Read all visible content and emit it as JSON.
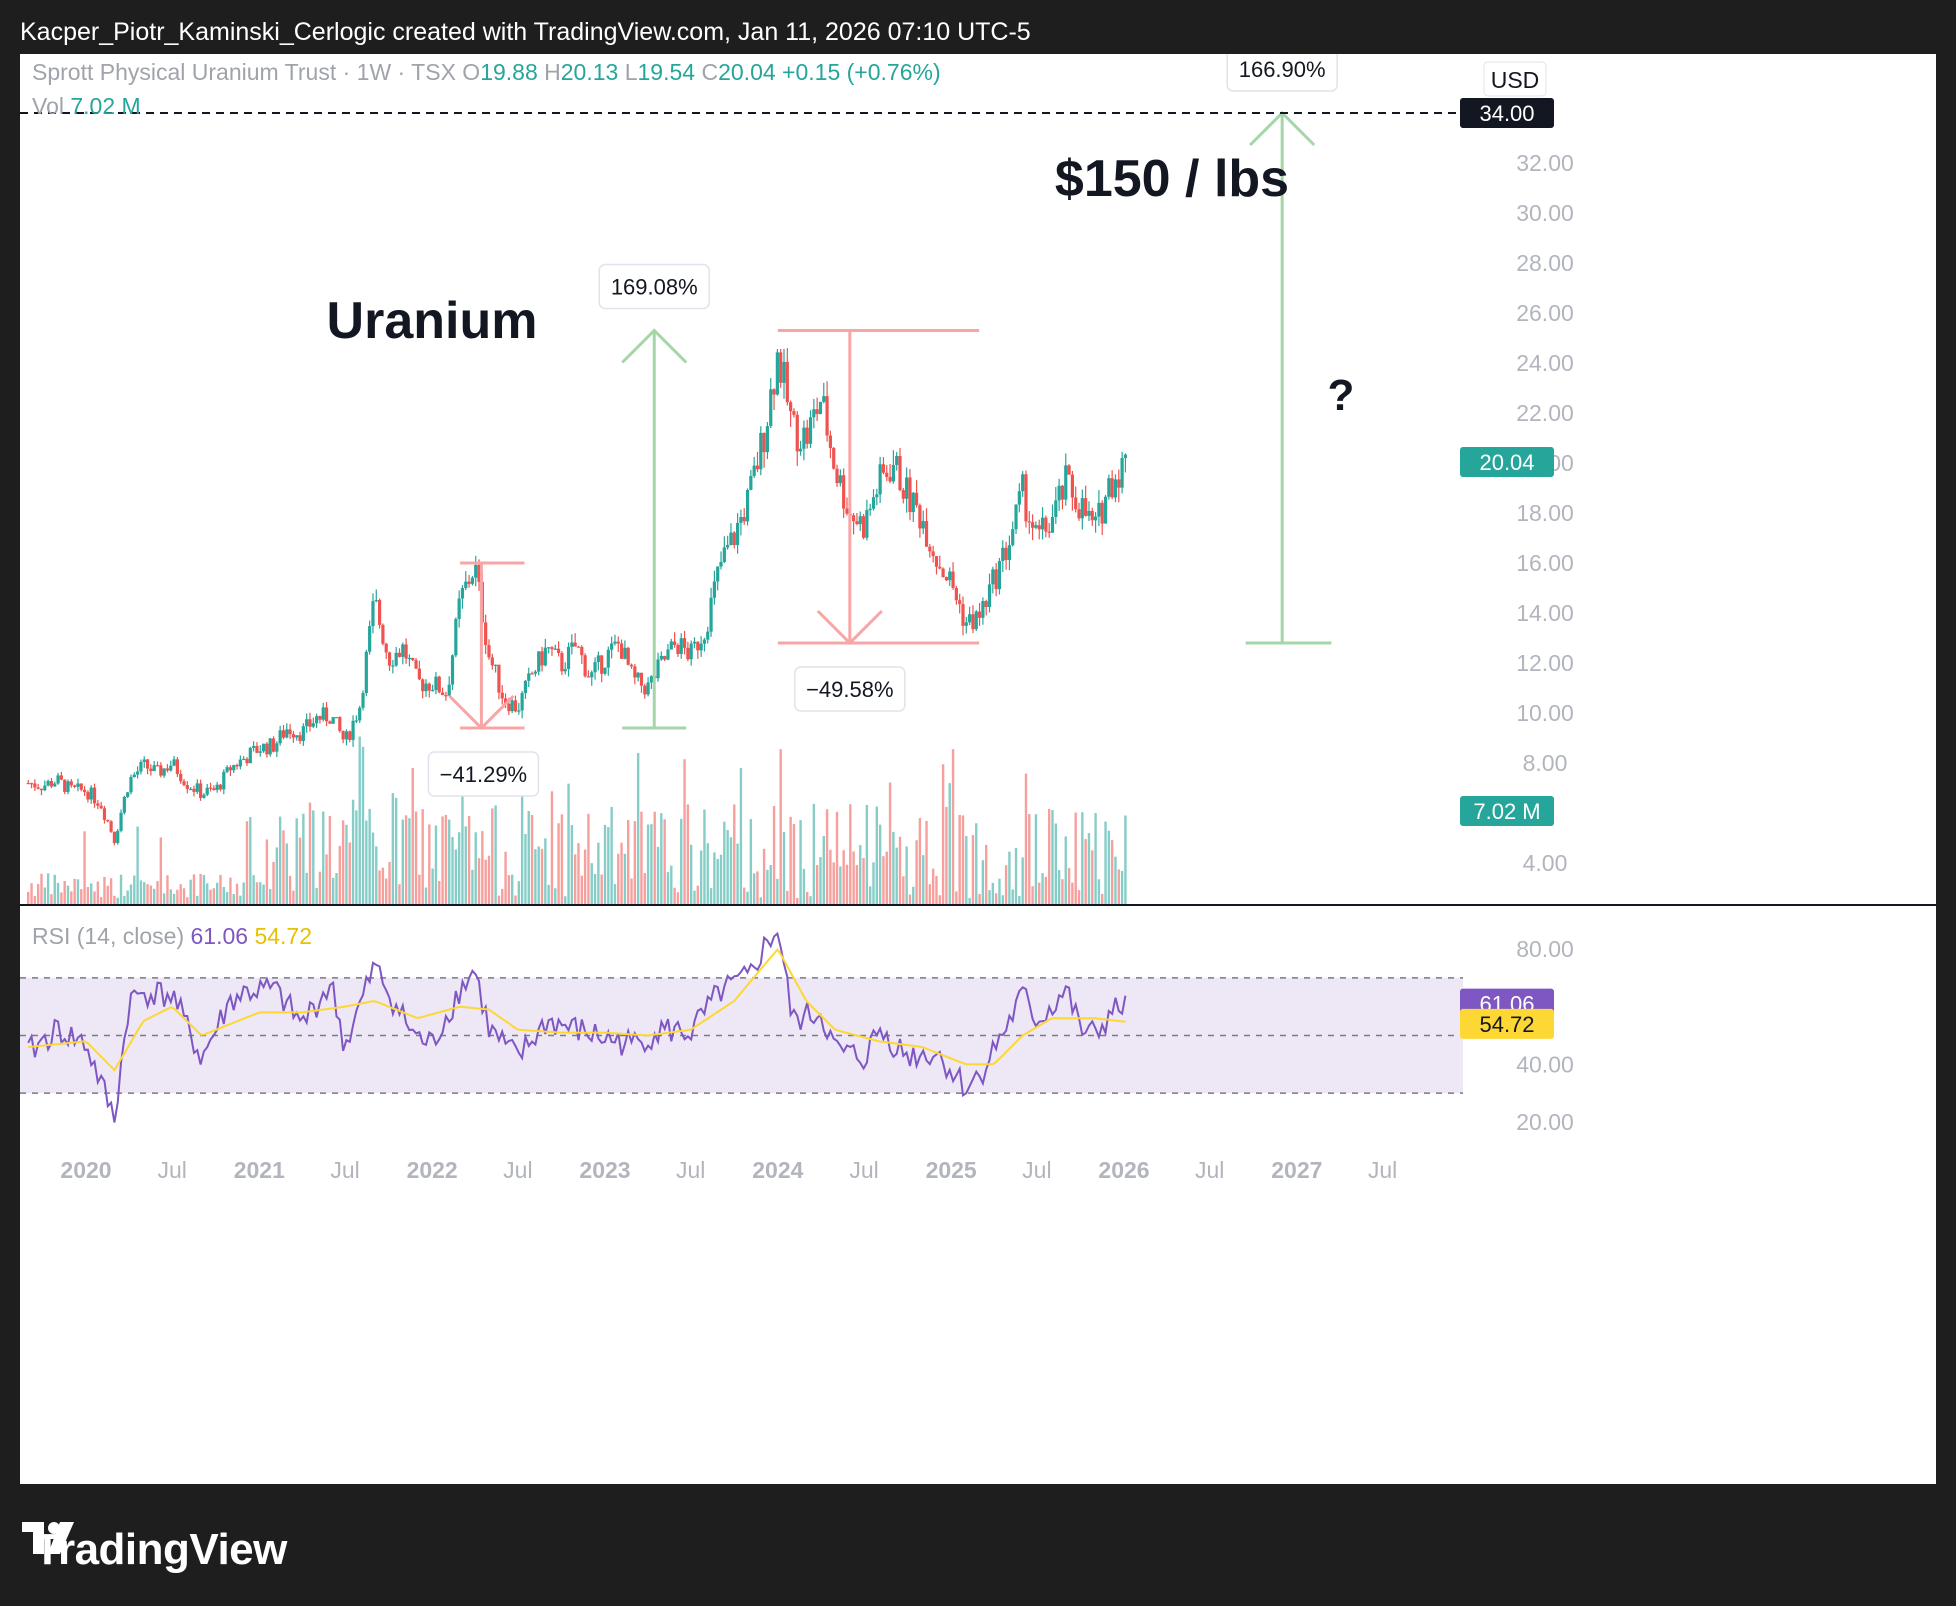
{
  "header": {
    "caption": "Kacper_Piotr_Kaminski_Cerlogic created with TradingView.com, Jan 11, 2026 07:10 UTC-5"
  },
  "footer": {
    "brand": "TradingView"
  },
  "legend": {
    "symbol": "Sprott Physical Uranium Trust · 1W · TSX",
    "o_label": "O",
    "o": "19.88",
    "h_label": "H",
    "h": "20.13",
    "l_label": "L",
    "l": "19.54",
    "c_label": "C",
    "c": "20.04",
    "change": "+0.15 (+0.76%)",
    "vol_label": "Vol",
    "vol": "7.02 M",
    "rsi_label": "RSI (14, close)",
    "rsi_value": "61.06",
    "rsi_ma_value": "54.72"
  },
  "currency": "USD",
  "colors": {
    "up": "#26a69a",
    "down": "#ef5350",
    "rsi": "#7e57c2",
    "rsi_ma": "#fdd835",
    "annot_green": "#a5d6a7",
    "annot_red": "#f8a5a5",
    "rsi_band": "#ede7f6"
  },
  "chart_data": {
    "type": "line",
    "title": "",
    "price": {
      "yticks": [
        "32.00",
        "30.00",
        "28.00",
        "26.00",
        "24.00",
        "22.00",
        "20.00",
        "18.00",
        "16.00",
        "14.00",
        "12.00",
        "10.00",
        "8.00",
        "4.00"
      ],
      "ylim": [
        2.0,
        36.0
      ],
      "last_price": "20.04",
      "target_level": "34.00",
      "vol_label": "7.02 M",
      "weekly_close_path": [
        [
          "2019-09-01",
          7.2
        ],
        [
          "2019-10-01",
          7.1
        ],
        [
          "2019-11-01",
          7.3
        ],
        [
          "2019-12-01",
          6.9
        ],
        [
          "2020-01-01",
          6.9
        ],
        [
          "2020-02-01",
          6.4
        ],
        [
          "2020-03-01",
          5.0
        ],
        [
          "2020-04-01",
          7.3
        ],
        [
          "2020-05-01",
          7.9
        ],
        [
          "2020-06-01",
          7.6
        ],
        [
          "2020-07-01",
          8.0
        ],
        [
          "2020-08-01",
          7.2
        ],
        [
          "2020-09-01",
          6.8
        ],
        [
          "2020-10-01",
          6.9
        ],
        [
          "2020-11-01",
          7.8
        ],
        [
          "2020-12-01",
          8.2
        ],
        [
          "2021-01-01",
          8.6
        ],
        [
          "2021-02-01",
          8.7
        ],
        [
          "2021-03-01",
          9.4
        ],
        [
          "2021-04-01",
          9.2
        ],
        [
          "2021-05-01",
          9.8
        ],
        [
          "2021-06-01",
          9.9
        ],
        [
          "2021-07-01",
          8.8
        ],
        [
          "2021-08-01",
          10.3
        ],
        [
          "2021-09-01",
          14.5
        ],
        [
          "2021-10-01",
          12.2
        ],
        [
          "2021-11-01",
          12.6
        ],
        [
          "2021-12-01",
          11.2
        ],
        [
          "2022-01-01",
          11.2
        ],
        [
          "2022-02-01",
          10.8
        ],
        [
          "2022-03-01",
          14.5
        ],
        [
          "2022-04-01",
          15.9
        ],
        [
          "2022-05-01",
          12.3
        ],
        [
          "2022-06-01",
          10.6
        ],
        [
          "2022-07-01",
          10.2
        ],
        [
          "2022-08-01",
          11.6
        ],
        [
          "2022-09-01",
          12.6
        ],
        [
          "2022-10-01",
          11.9
        ],
        [
          "2022-11-01",
          12.7
        ],
        [
          "2022-12-01",
          11.4
        ],
        [
          "2023-01-01",
          12.2
        ],
        [
          "2023-02-01",
          12.8
        ],
        [
          "2023-03-01",
          11.3
        ],
        [
          "2023-04-01",
          11.0
        ],
        [
          "2023-05-01",
          12.0
        ],
        [
          "2023-06-01",
          12.8
        ],
        [
          "2023-07-01",
          12.3
        ],
        [
          "2023-08-01",
          13.4
        ],
        [
          "2023-09-01",
          15.9
        ],
        [
          "2023-10-01",
          17.1
        ],
        [
          "2023-11-01",
          18.6
        ],
        [
          "2023-12-01",
          21.0
        ],
        [
          "2024-01-01",
          24.4
        ],
        [
          "2024-02-01",
          21.4
        ],
        [
          "2024-03-01",
          21.0
        ],
        [
          "2024-04-01",
          22.6
        ],
        [
          "2024-05-01",
          19.8
        ],
        [
          "2024-06-01",
          18.0
        ],
        [
          "2024-07-01",
          17.5
        ],
        [
          "2024-08-01",
          19.2
        ],
        [
          "2024-09-01",
          20.0
        ],
        [
          "2024-10-01",
          18.7
        ],
        [
          "2024-11-01",
          17.8
        ],
        [
          "2024-12-01",
          16.2
        ],
        [
          "2025-01-01",
          15.2
        ],
        [
          "2025-02-01",
          13.6
        ],
        [
          "2025-03-01",
          13.8
        ],
        [
          "2025-04-01",
          15.3
        ],
        [
          "2025-05-01",
          16.7
        ],
        [
          "2025-06-01",
          18.8
        ],
        [
          "2025-07-01",
          16.9
        ],
        [
          "2025-08-01",
          17.7
        ],
        [
          "2025-09-01",
          19.2
        ],
        [
          "2025-10-01",
          18.3
        ],
        [
          "2025-11-01",
          17.3
        ],
        [
          "2025-12-01",
          19.2
        ],
        [
          "2026-01-05",
          20.04
        ]
      ]
    },
    "rsi": {
      "yticks": [
        "80.00",
        "40.00",
        "20.00"
      ],
      "ylim": [
        15,
        90
      ],
      "band": [
        30,
        70
      ],
      "mid": 50,
      "rsi_path": [
        [
          "2019-09-01",
          44
        ],
        [
          "2019-11-01",
          52
        ],
        [
          "2020-01-01",
          47
        ],
        [
          "2020-03-01",
          21
        ],
        [
          "2020-04-01",
          62
        ],
        [
          "2020-05-01",
          65
        ],
        [
          "2020-07-01",
          64
        ],
        [
          "2020-09-01",
          42
        ],
        [
          "2020-11-01",
          62
        ],
        [
          "2020-12-01",
          65
        ],
        [
          "2021-02-01",
          66
        ],
        [
          "2021-04-01",
          54
        ],
        [
          "2021-06-01",
          68
        ],
        [
          "2021-07-01",
          46
        ],
        [
          "2021-09-01",
          74
        ],
        [
          "2021-11-01",
          56
        ],
        [
          "2021-12-01",
          49
        ],
        [
          "2022-01-01",
          47
        ],
        [
          "2022-03-01",
          66
        ],
        [
          "2022-04-01",
          73
        ],
        [
          "2022-05-01",
          52
        ],
        [
          "2022-07-01",
          42
        ],
        [
          "2022-09-01",
          55
        ],
        [
          "2022-11-01",
          52
        ],
        [
          "2023-01-01",
          49
        ],
        [
          "2023-03-01",
          47
        ],
        [
          "2023-05-01",
          52
        ],
        [
          "2023-07-01",
          51
        ],
        [
          "2023-09-01",
          65
        ],
        [
          "2023-11-01",
          70
        ],
        [
          "2023-12-01",
          80
        ],
        [
          "2024-01-01",
          87
        ],
        [
          "2024-02-01",
          55
        ],
        [
          "2024-04-01",
          58
        ],
        [
          "2024-05-01",
          45
        ],
        [
          "2024-07-01",
          42
        ],
        [
          "2024-08-01",
          52
        ],
        [
          "2024-10-01",
          43
        ],
        [
          "2024-12-01",
          44
        ],
        [
          "2025-02-01",
          32
        ],
        [
          "2025-03-01",
          36
        ],
        [
          "2025-05-01",
          54
        ],
        [
          "2025-06-01",
          64
        ],
        [
          "2025-07-01",
          55
        ],
        [
          "2025-08-01",
          60
        ],
        [
          "2025-09-01",
          66
        ],
        [
          "2025-10-01",
          52
        ],
        [
          "2025-11-01",
          50
        ],
        [
          "2025-12-01",
          57
        ],
        [
          "2026-01-05",
          61.06
        ]
      ],
      "ma_path": [
        [
          "2019-09-01",
          46
        ],
        [
          "2020-01-01",
          48
        ],
        [
          "2020-03-01",
          38
        ],
        [
          "2020-05-01",
          55
        ],
        [
          "2020-07-01",
          60
        ],
        [
          "2020-09-01",
          50
        ],
        [
          "2020-11-01",
          54
        ],
        [
          "2021-01-01",
          58
        ],
        [
          "2021-04-01",
          58
        ],
        [
          "2021-07-01",
          60
        ],
        [
          "2021-09-01",
          62
        ],
        [
          "2021-12-01",
          56
        ],
        [
          "2022-03-01",
          60
        ],
        [
          "2022-05-01",
          59
        ],
        [
          "2022-07-01",
          52
        ],
        [
          "2022-10-01",
          51
        ],
        [
          "2023-01-01",
          51
        ],
        [
          "2023-04-01",
          50
        ],
        [
          "2023-07-01",
          52
        ],
        [
          "2023-10-01",
          62
        ],
        [
          "2023-12-01",
          74
        ],
        [
          "2024-01-01",
          80
        ],
        [
          "2024-03-01",
          62
        ],
        [
          "2024-05-01",
          52
        ],
        [
          "2024-08-01",
          48
        ],
        [
          "2024-11-01",
          46
        ],
        [
          "2025-02-01",
          40
        ],
        [
          "2025-04-01",
          40
        ],
        [
          "2025-06-01",
          50
        ],
        [
          "2025-08-01",
          56
        ],
        [
          "2025-11-01",
          56
        ],
        [
          "2026-01-05",
          54.72
        ]
      ]
    },
    "xticks": [
      {
        "label": "2020",
        "date": "2020-01-01",
        "bold": true
      },
      {
        "label": "Jul",
        "date": "2020-07-01",
        "bold": false
      },
      {
        "label": "2021",
        "date": "2021-01-01",
        "bold": true
      },
      {
        "label": "Jul",
        "date": "2021-07-01",
        "bold": false
      },
      {
        "label": "2022",
        "date": "2022-01-01",
        "bold": true
      },
      {
        "label": "Jul",
        "date": "2022-07-01",
        "bold": false
      },
      {
        "label": "2023",
        "date": "2023-01-01",
        "bold": true
      },
      {
        "label": "Jul",
        "date": "2023-07-01",
        "bold": false
      },
      {
        "label": "2024",
        "date": "2024-01-01",
        "bold": true
      },
      {
        "label": "Jul",
        "date": "2024-07-01",
        "bold": false
      },
      {
        "label": "2025",
        "date": "2025-01-01",
        "bold": true
      },
      {
        "label": "Jul",
        "date": "2025-07-01",
        "bold": false
      },
      {
        "label": "2026",
        "date": "2026-01-01",
        "bold": true
      },
      {
        "label": "Jul",
        "date": "2026-07-01",
        "bold": false
      },
      {
        "label": "2027",
        "date": "2027-01-01",
        "bold": true
      },
      {
        "label": "Jul",
        "date": "2027-07-01",
        "bold": false
      }
    ],
    "annotations": {
      "text_uranium": "Uranium",
      "text_target": "$150 / lbs",
      "text_question": "?",
      "measures": [
        {
          "label": "−41.29%",
          "kind": "down",
          "from": [
            "2022-04-15",
            16.0
          ],
          "to": [
            "2022-06-15",
            9.4
          ],
          "x_extent": [
            "2022-03-01",
            "2022-07-15"
          ]
        },
        {
          "label": "169.08%",
          "kind": "up",
          "from": [
            "2023-04-15",
            9.4
          ],
          "to": [
            "2023-04-15",
            25.3
          ],
          "x_extent": [
            "2023-03-15",
            "2023-05-15"
          ]
        },
        {
          "label": "−49.58%",
          "kind": "down",
          "from": [
            "2024-06-01",
            25.3
          ],
          "to": [
            "2024-06-01",
            12.8
          ],
          "x_extent": [
            "2024-01-01",
            "2025-03-01"
          ]
        },
        {
          "label": "166.90%",
          "kind": "up",
          "from": [
            "2026-12-01",
            12.8
          ],
          "to": [
            "2026-12-01",
            34.0
          ],
          "x_extent": [
            "2026-09-15",
            "2027-03-15"
          ]
        }
      ]
    }
  }
}
